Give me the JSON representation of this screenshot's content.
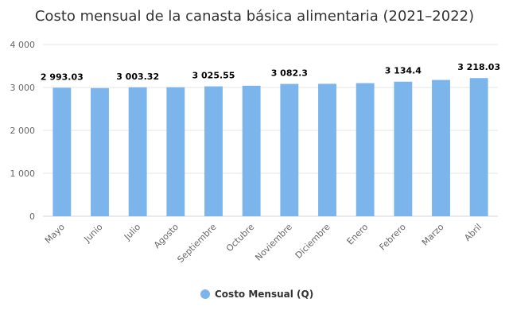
{
  "chart_data": {
    "type": "bar",
    "title": "Costo mensual de la canasta básica alimentaria (2021–2022)",
    "categories": [
      "Mayo",
      "Junio",
      "Julio",
      "Agosto",
      "Septiembre",
      "Octubre",
      "Noviembre",
      "Diciembre",
      "Enero",
      "Febrero",
      "Marzo",
      "Abril"
    ],
    "series": [
      {
        "name": "Costo Mensual (Q)",
        "color": "#7cb5ec",
        "values": [
          2993.03,
          2985,
          3003.32,
          3005,
          3025.55,
          3040,
          3082.3,
          3085,
          3100,
          3134.4,
          3175,
          3218.03
        ]
      }
    ],
    "data_labels": [
      "2 993.03",
      "",
      "3 003.32",
      "",
      "3 025.55",
      "",
      "3 082.3",
      "",
      "",
      "3 134.4",
      "",
      "3 218.03"
    ],
    "y_ticks": [
      "0",
      "1 000",
      "2 000",
      "3 000",
      "4 000"
    ],
    "y_tick_values": [
      0,
      1000,
      2000,
      3000,
      4000
    ],
    "ylim": [
      0,
      4000
    ],
    "grid": true,
    "legend_position": "bottom-center"
  }
}
